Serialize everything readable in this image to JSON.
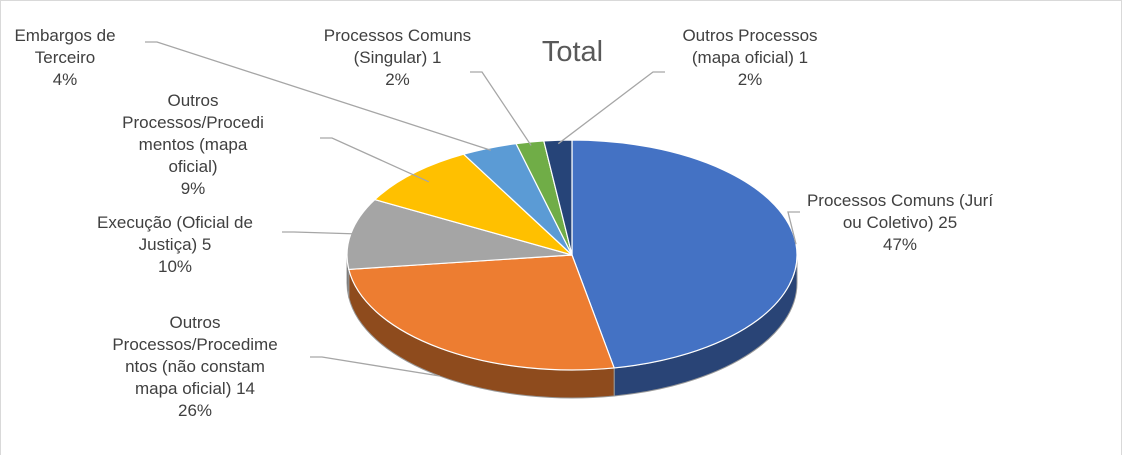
{
  "chart_data": {
    "type": "pie",
    "title": "Total",
    "categories": [
      "Processos Comuns (Jurí ou Coletivo) 25",
      "Outros Processos/Procedimentos (não constam mapa oficial) 14",
      "Execução (Oficial de Justiça) 5",
      "Outros Processos/Procedimentos (mapa oficial)",
      "Embargos de Terceiro",
      "Processos Comuns (Singular) 1",
      "Outros Processos (mapa oficial) 1"
    ],
    "values": [
      47,
      26,
      10,
      9,
      4,
      2,
      2
    ],
    "value_labels": [
      "47%",
      "26%",
      "10%",
      "9%",
      "4%",
      "2%",
      "2%"
    ],
    "colors": [
      "#4472c4",
      "#ed7d31",
      "#a5a5a5",
      "#ffc000",
      "#5b9bd5",
      "#70ad47",
      "#264478"
    ]
  }
}
